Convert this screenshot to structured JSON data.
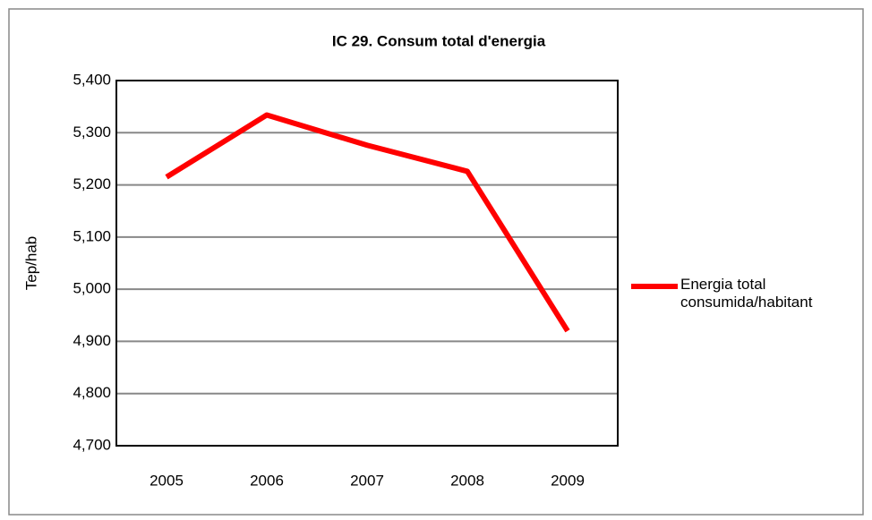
{
  "chart_data": {
    "type": "line",
    "title": "IC 29. Consum total d'energia",
    "y_label": "Tep/hab",
    "categories": [
      "2005",
      "2006",
      "2007",
      "2008",
      "2009"
    ],
    "series": [
      {
        "name": "Energia total consumida/habitant",
        "color": "#ff0000",
        "values": [
          5215,
          5334,
          5276,
          5226,
          4920
        ]
      }
    ],
    "ylim": [
      4700,
      5400
    ],
    "yticks": [
      {
        "value": 4700,
        "label": "4,700"
      },
      {
        "value": 4800,
        "label": "4,800"
      },
      {
        "value": 4900,
        "label": "4,900"
      },
      {
        "value": 5000,
        "label": "5,000"
      },
      {
        "value": 5100,
        "label": "5,100"
      },
      {
        "value": 5200,
        "label": "5,200"
      },
      {
        "value": 5300,
        "label": "5,300"
      },
      {
        "value": 5400,
        "label": "5,400"
      }
    ],
    "grid": true,
    "legend": "right"
  }
}
